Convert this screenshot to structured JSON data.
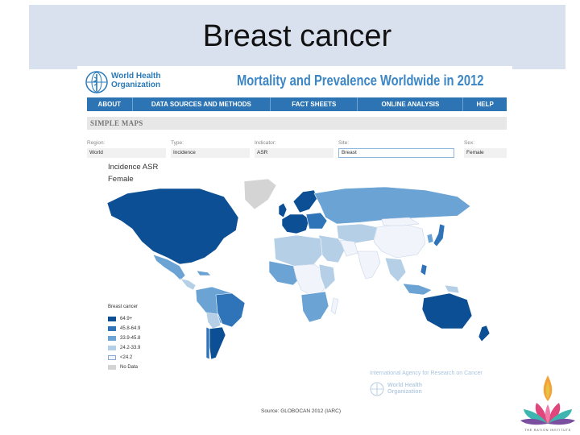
{
  "slide": {
    "title": "Breast cancer"
  },
  "site": {
    "logo_text": "World Health Organization",
    "heading": "Mortality and Prevalence Worldwide in 2012"
  },
  "nav": {
    "items": [
      {
        "label": "ABOUT"
      },
      {
        "label": "DATA SOURCES AND METHODS"
      },
      {
        "label": "FACT SHEETS"
      },
      {
        "label": "ONLINE ANALYSIS"
      },
      {
        "label": "HELP"
      }
    ]
  },
  "section": {
    "label": "SIMPLE MAPS"
  },
  "filters": [
    {
      "label": "Region:",
      "value": "World"
    },
    {
      "label": "Type:",
      "value": "Incidence"
    },
    {
      "label": "Indicator:",
      "value": "ASR"
    },
    {
      "label": "Site:",
      "value": "Breast"
    },
    {
      "label": "Sex:",
      "value": "Female"
    }
  ],
  "map": {
    "title": "Incidence ASR",
    "subtitle": "Female",
    "legend_title": "Breast cancer",
    "legend": [
      {
        "label": "64.9+",
        "color": "#0d4f94"
      },
      {
        "label": "45.8-64.9",
        "color": "#2f73b8"
      },
      {
        "label": "33.9-45.8",
        "color": "#6aa3d4"
      },
      {
        "label": "24.2-33.9",
        "color": "#b4cfe6"
      },
      {
        "label": "<24.2",
        "color": "#f1f4fb"
      },
      {
        "label": "No Data",
        "color": "#d4d4d4"
      }
    ]
  },
  "footer": {
    "iarc": "International Agency for Research on Cancer",
    "who_small": "World Health Organization",
    "source": "Source: GLOBOCAN 2012 (IARC)"
  },
  "branding": {
    "text": "THE RATION INSTITUTE"
  }
}
